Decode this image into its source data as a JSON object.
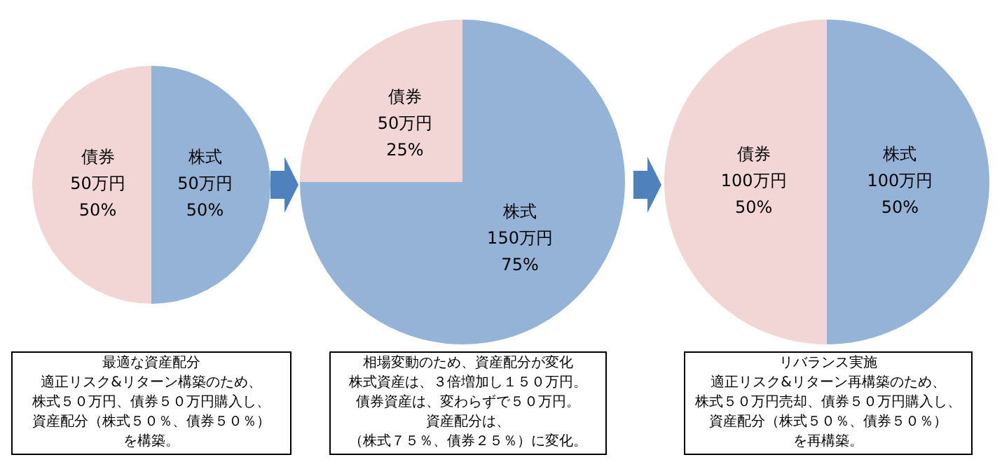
{
  "chart_data": [
    {
      "type": "pie",
      "categories": [
        "株式",
        "債券"
      ],
      "values": [
        50,
        50
      ],
      "colors": [
        "#95b3d7",
        "#f2d5d5"
      ],
      "value_labels": [
        "50万円\n50%",
        "50万円\n50%"
      ],
      "annotations": [
        "最適な資産配分",
        "適正リスク&リターン構築のため、",
        "株式５０万円、債券５０万円購入し、",
        "資産配分（株式５０％、債券５０％）",
        "を構築。"
      ]
    },
    {
      "type": "pie",
      "categories": [
        "株式",
        "債券"
      ],
      "values": [
        150,
        50
      ],
      "colors": [
        "#95b3d7",
        "#f2d5d5"
      ],
      "value_labels": [
        "150万円\n75%",
        "50万円\n25%"
      ],
      "annotations": [
        "相場変動のため、資産配分が変化",
        "株式資産は、３倍増加し１５０万円。",
        "債券資産は、変わらずで５０万円。",
        "資産配分は、",
        "（株式７５％、債券２５％）に変化。"
      ]
    },
    {
      "type": "pie",
      "categories": [
        "株式",
        "債券"
      ],
      "values": [
        100,
        100
      ],
      "colors": [
        "#95b3d7",
        "#f2d5d5"
      ],
      "value_labels": [
        "100万円\n50%",
        "100万円\n50%"
      ],
      "annotations": [
        "リバランス実施",
        "適正リスク&リターン再構築のため、",
        "株式５０万円売却、債券５０万円購入し、",
        "資産配分（株式５０％、債券５０％）",
        "を再構築。"
      ]
    }
  ]
}
